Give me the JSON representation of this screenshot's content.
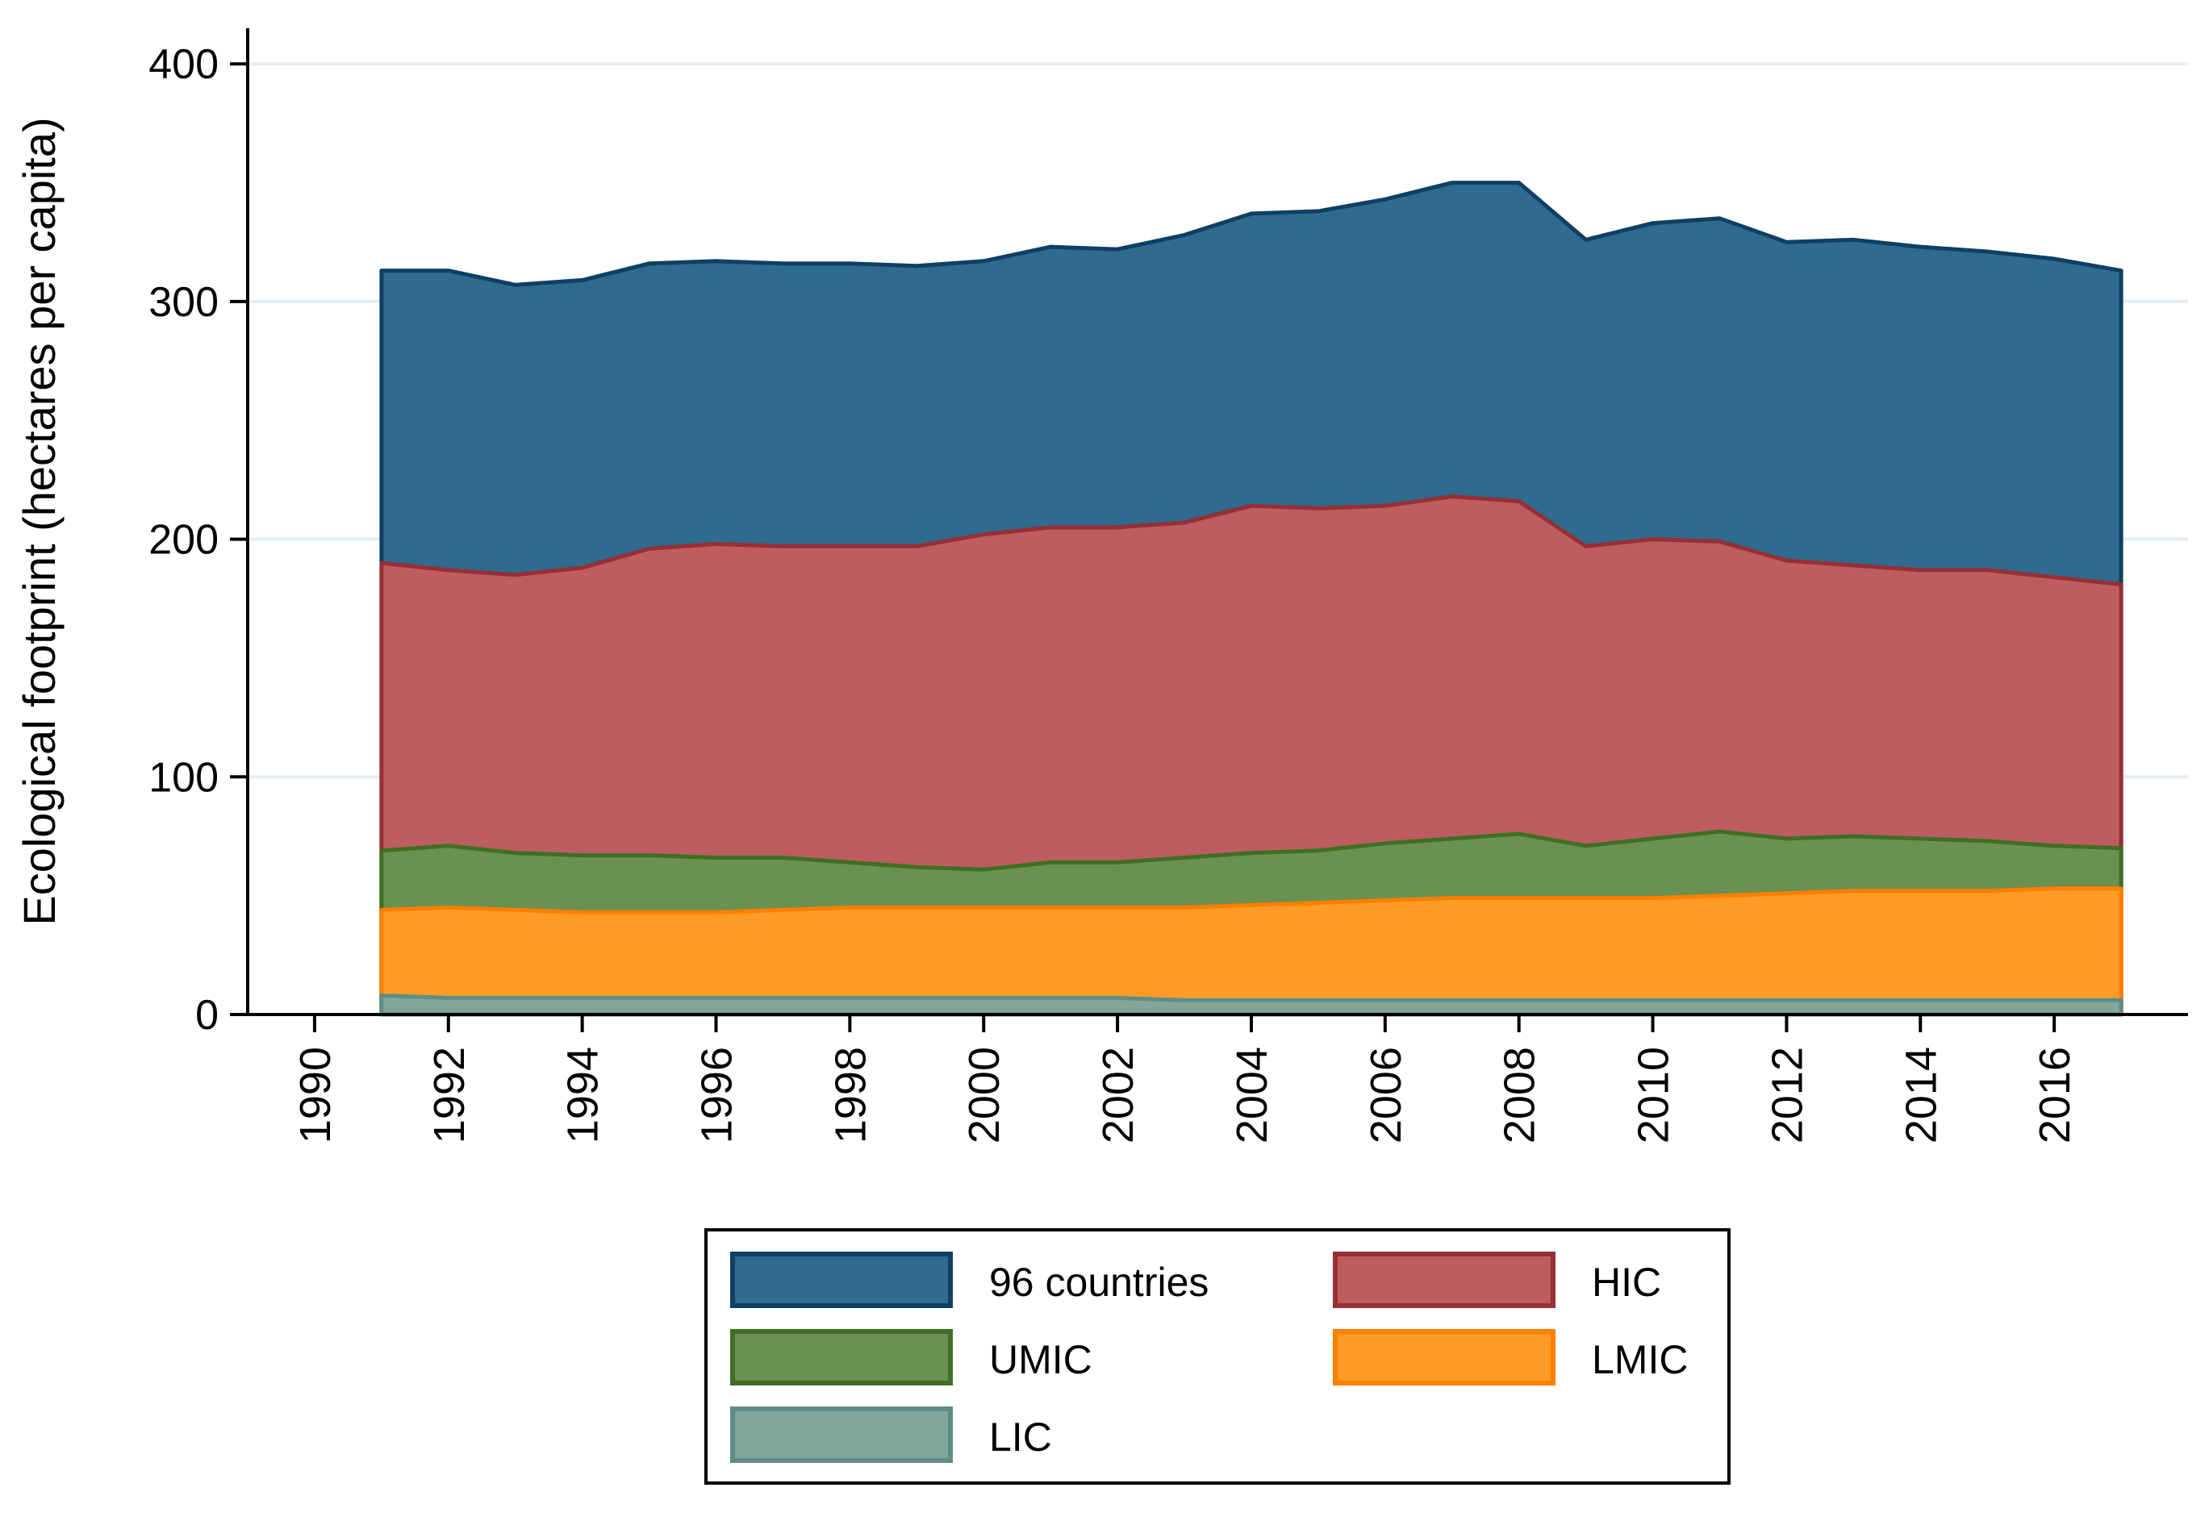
{
  "chart_data": {
    "type": "area",
    "stacked": false,
    "title": "",
    "xlabel": "",
    "ylabel": "Ecological footprint (hectares per capita)",
    "xlim": [
      1989,
      2018
    ],
    "ylim": [
      0,
      415
    ],
    "x_ticks": [
      "1990",
      "1992",
      "1994",
      "1996",
      "1998",
      "2000",
      "2002",
      "2004",
      "2006",
      "2008",
      "2010",
      "2012",
      "2014",
      "2016"
    ],
    "y_ticks": [
      "0",
      "100",
      "200",
      "300",
      "400"
    ],
    "x": [
      1991,
      1992,
      1993,
      1994,
      1995,
      1996,
      1997,
      1998,
      1999,
      2000,
      2001,
      2002,
      2003,
      2004,
      2005,
      2006,
      2007,
      2008,
      2009,
      2010,
      2011,
      2012,
      2013,
      2014,
      2015,
      2016,
      2017
    ],
    "series": [
      {
        "name": "96 countries",
        "key": "c96",
        "color": "#2e6b8e",
        "stroke": "#0f3f63",
        "values": [
          313,
          313,
          307,
          309,
          316,
          317,
          316,
          316,
          315,
          317,
          323,
          322,
          328,
          337,
          338,
          343,
          350,
          350,
          326,
          333,
          335,
          325,
          326,
          323,
          321,
          318,
          313
        ]
      },
      {
        "name": "HIC",
        "key": "hic",
        "color": "#bd5c61",
        "stroke": "#962f36",
        "values": [
          190,
          187,
          185,
          188,
          196,
          198,
          197,
          197,
          197,
          202,
          205,
          205,
          207,
          214,
          213,
          214,
          218,
          216,
          197,
          200,
          199,
          191,
          189,
          187,
          187,
          184,
          181
        ]
      },
      {
        "name": "UMIC",
        "key": "umic",
        "color": "#6a9151",
        "stroke": "#3f6f25",
        "values": [
          69,
          71,
          68,
          67,
          67,
          66,
          66,
          64,
          62,
          61,
          64,
          64,
          66,
          68,
          69,
          72,
          74,
          76,
          71,
          74,
          77,
          74,
          75,
          74,
          73,
          71,
          70
        ]
      },
      {
        "name": "LMIC",
        "key": "lmic",
        "color": "#ff9b26",
        "stroke": "#ff7f00",
        "values": [
          44,
          45,
          44,
          43,
          43,
          43,
          44,
          45,
          45,
          45,
          45,
          45,
          45,
          46,
          47,
          48,
          49,
          49,
          49,
          49,
          50,
          51,
          52,
          52,
          52,
          53,
          53
        ]
      },
      {
        "name": "LIC",
        "key": "lic",
        "color": "#82a69a",
        "stroke": "#5f8d86",
        "values": [
          8,
          7,
          7,
          7,
          7,
          7,
          7,
          7,
          7,
          7,
          7,
          7,
          6,
          6,
          6,
          6,
          6,
          6,
          6,
          6,
          6,
          6,
          6,
          6,
          6,
          6,
          6
        ]
      }
    ],
    "legend": {
      "position": "bottom",
      "columns": 2,
      "items": [
        "96 countries",
        "HIC",
        "UMIC",
        "LMIC",
        "LIC"
      ]
    },
    "grid": "horizontal"
  }
}
